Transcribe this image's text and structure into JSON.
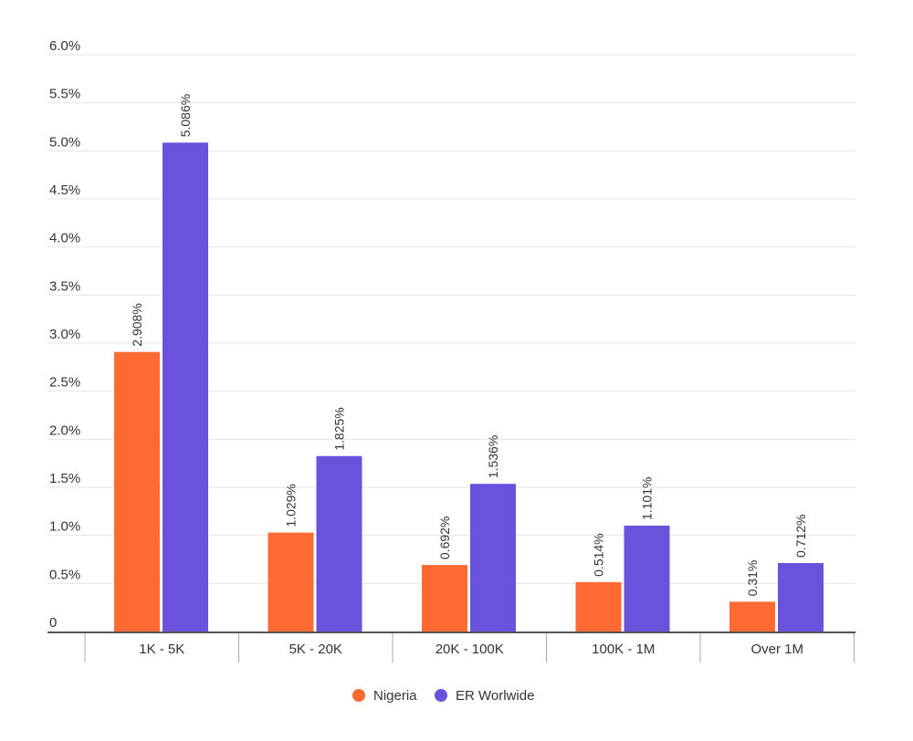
{
  "chart_data": {
    "type": "bar",
    "categories": [
      "1K - 5K",
      "5K - 20K",
      "20K - 100K",
      "100K - 1M",
      "Over 1M"
    ],
    "series": [
      {
        "name": "Nigeria",
        "color": "#ff6a33",
        "values": [
          2.908,
          1.029,
          0.692,
          0.514,
          0.31
        ],
        "labels": [
          "2.908%",
          "1.029%",
          "0.692%",
          "0.514%",
          "0.31%"
        ]
      },
      {
        "name": "ER Worlwide",
        "color": "#6b52dc",
        "values": [
          5.086,
          1.825,
          1.536,
          1.101,
          0.712
        ],
        "labels": [
          "5.086%",
          "1.825%",
          "1.536%",
          "1.101%",
          "0.712%"
        ]
      }
    ],
    "ylim": [
      0,
      6
    ],
    "yticks": [
      0,
      0.5,
      1,
      1.5,
      2,
      2.5,
      3,
      3.5,
      4,
      4.5,
      5,
      5.5,
      6
    ],
    "ytick_labels": [
      "0",
      "0.5%",
      "1.0%",
      "1.5%",
      "2.0%",
      "2.5%",
      "3.0%",
      "3.5%",
      "4.0%",
      "4.5%",
      "5.0%",
      "5.5%",
      "6.0%"
    ],
    "grid": true,
    "legend_position": "bottom-center"
  }
}
